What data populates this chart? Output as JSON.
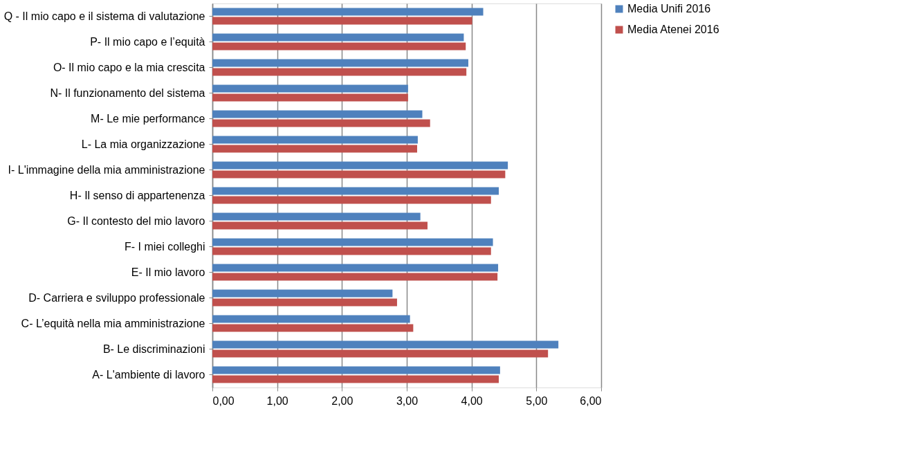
{
  "chart_data": {
    "type": "bar",
    "orientation": "horizontal",
    "categories": [
      "Q - Il mio capo e il sistema di valutazione",
      "P- Il mio capo e l’equità",
      "O- Il mio capo e la mia crescita",
      "N- Il funzionamento del sistema",
      "M- Le mie performance",
      "L- La mia organizzazione",
      "I- L'immagine della mia amministrazione",
      "H- Il senso di appartenenza",
      "G- Il contesto del mio lavoro",
      "F- I miei colleghi",
      "E- Il mio lavoro",
      "D- Carriera e sviluppo professionale",
      "C-  L’equità nella mia amministrazione",
      "B- Le discriminazioni",
      "A- L'ambiente di lavoro"
    ],
    "series": [
      {
        "name": "Media Unifi 2016",
        "color": "#4f81bd",
        "values": [
          4.18,
          3.88,
          3.95,
          3.02,
          3.24,
          3.17,
          4.56,
          4.42,
          3.21,
          4.33,
          4.41,
          2.78,
          3.05,
          5.34,
          4.44
        ]
      },
      {
        "name": "Media Atenei 2016",
        "color": "#c0504d",
        "values": [
          4.01,
          3.91,
          3.92,
          3.02,
          3.36,
          3.16,
          4.52,
          4.3,
          3.32,
          4.3,
          4.4,
          2.85,
          3.1,
          5.18,
          4.42
        ]
      }
    ],
    "xlim": [
      0,
      6
    ],
    "xticks": [
      {
        "value": 0,
        "label": "0,00"
      },
      {
        "value": 1,
        "label": "1,00"
      },
      {
        "value": 2,
        "label": "2,00"
      },
      {
        "value": 3,
        "label": "3,00"
      },
      {
        "value": 4,
        "label": "4,00"
      },
      {
        "value": 5,
        "label": "5,00"
      },
      {
        "value": 6,
        "label": "6,00"
      }
    ],
    "grid": "x",
    "legend": "right"
  }
}
